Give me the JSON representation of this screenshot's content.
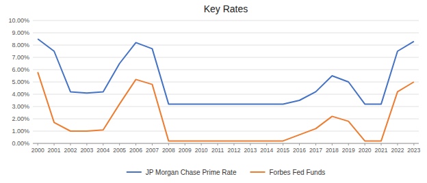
{
  "chart_data": {
    "type": "line",
    "title": "Key Rates",
    "x": [
      2000,
      2001,
      2002,
      2003,
      2004,
      2005,
      2006,
      2007,
      2008,
      2009,
      2010,
      2011,
      2012,
      2013,
      2014,
      2015,
      2016,
      2017,
      2018,
      2019,
      2020,
      2021,
      2022,
      2023
    ],
    "series": [
      {
        "name": "JP Morgan Chase Prime Rate",
        "color": "#4472C4",
        "values": [
          0.085,
          0.075,
          0.042,
          0.041,
          0.042,
          0.065,
          0.082,
          0.077,
          0.032,
          0.032,
          0.032,
          0.032,
          0.032,
          0.032,
          0.032,
          0.032,
          0.035,
          0.042,
          0.055,
          0.05,
          0.032,
          0.032,
          0.075,
          0.083
        ]
      },
      {
        "name": "Forbes Fed Funds",
        "color": "#ED7D31",
        "values": [
          0.058,
          0.017,
          0.01,
          0.01,
          0.011,
          0.032,
          0.052,
          0.048,
          0.002,
          0.002,
          0.002,
          0.002,
          0.002,
          0.002,
          0.002,
          0.002,
          0.007,
          0.012,
          0.022,
          0.018,
          0.002,
          0.002,
          0.042,
          0.05
        ]
      }
    ],
    "xlim": [
      1999.7,
      2023.3
    ],
    "xticks": [
      2000,
      2001,
      2002,
      2003,
      2004,
      2005,
      2006,
      2007,
      2008,
      2009,
      2010,
      2011,
      2012,
      2013,
      2014,
      2015,
      2016,
      2017,
      2018,
      2019,
      2020,
      2021,
      2022,
      2023
    ],
    "ylim": [
      0.0,
      0.1
    ],
    "yticks": [
      {
        "value": 0.0,
        "label": "0.00%"
      },
      {
        "value": 0.01,
        "label": "1.00%"
      },
      {
        "value": 0.02,
        "label": "2.00%"
      },
      {
        "value": 0.03,
        "label": "3.00%"
      },
      {
        "value": 0.04,
        "label": "4.00%"
      },
      {
        "value": 0.05,
        "label": "5.00%"
      },
      {
        "value": 0.06,
        "label": "6.00%"
      },
      {
        "value": 0.07,
        "label": "7.00%"
      },
      {
        "value": 0.08,
        "label": "8.00%"
      },
      {
        "value": 0.09,
        "label": "9.00%"
      },
      {
        "value": 0.1,
        "label": "10.00%"
      }
    ],
    "grid": true,
    "legend": "bottom"
  }
}
